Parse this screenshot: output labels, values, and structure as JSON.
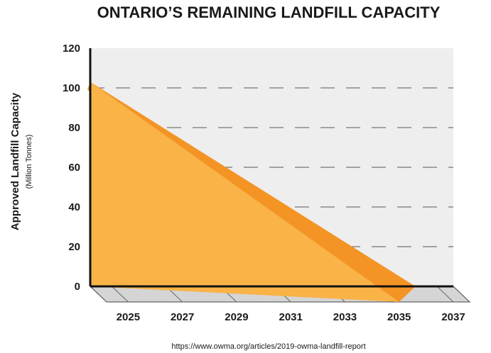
{
  "chart_data": {
    "type": "area",
    "title": "ONTARIO’S  REMAINING LANDFILL CAPACITY",
    "ylabel": "Approved Landfill Capacity",
    "ylabel_sub": "(Million Tonnes)",
    "source": "https://www.owma.org/articles/2019-owma-landfill-report",
    "ylim": [
      0,
      120
    ],
    "xlim": [
      2023.6,
      2037
    ],
    "y_ticks": [
      0,
      20,
      40,
      60,
      80,
      100,
      120
    ],
    "x_ticks": [
      2025,
      2027,
      2029,
      2031,
      2033,
      2035,
      2037
    ],
    "grid": "dashed horizontal",
    "colors": {
      "series_front": "#F9B347",
      "series_back": "#F39425",
      "plot_back": "#EEEEEE",
      "floor": "#D5D5D5"
    },
    "series": [
      {
        "x": [
          2023.6,
          2035.6
        ],
        "values": [
          103,
          0
        ]
      }
    ]
  }
}
